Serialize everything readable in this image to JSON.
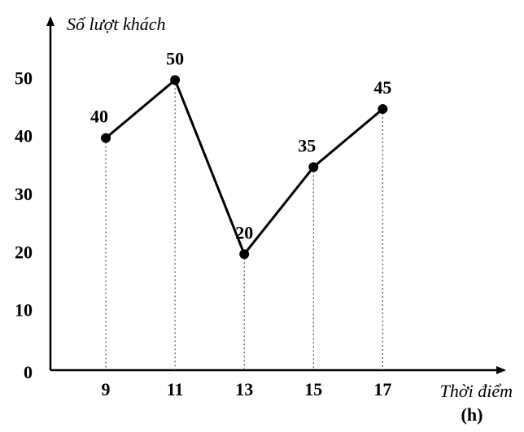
{
  "chart_data": {
    "type": "line",
    "y_label": "Số lượt khách",
    "x_label": "Thời điểm",
    "x_unit": "(h)",
    "x": [
      9,
      11,
      13,
      15,
      17
    ],
    "values": [
      40,
      50,
      20,
      35,
      45
    ],
    "color": "#000000",
    "xlim": [
      7.4,
      20.4
    ],
    "xticks": [
      9,
      11,
      13,
      15,
      17
    ],
    "ylim": [
      0,
      60
    ],
    "yticks": [
      0,
      10,
      20,
      30,
      40,
      50
    ],
    "drop_lines": true
  }
}
